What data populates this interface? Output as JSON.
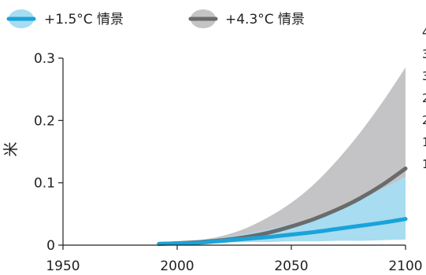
{
  "chart_data": {
    "type": "area",
    "ylabel": "米",
    "xlim": [
      1950,
      2100
    ],
    "ylim": [
      0,
      0.3
    ],
    "xticks": [
      1950,
      2000,
      2050,
      2100
    ],
    "yticks": [
      {
        "value": 0,
        "label": "0"
      },
      {
        "value": 0.1,
        "label": "0.1"
      },
      {
        "value": 0.2,
        "label": "0.2"
      },
      {
        "value": 0.3,
        "label": "0.3"
      }
    ],
    "grid": false,
    "legend_position": "top-left",
    "series": [
      {
        "name": "+1.5°C 情景",
        "color": "#1aa3d9",
        "band_color": "#a7dcf1",
        "x": [
          1992,
          2000,
          2010,
          2020,
          2030,
          2040,
          2050,
          2060,
          2070,
          2080,
          2090,
          2100
        ],
        "values": [
          0.002,
          0.003,
          0.004,
          0.007,
          0.01,
          0.013,
          0.017,
          0.021,
          0.026,
          0.031,
          0.036,
          0.042
        ],
        "lower": [
          0.002,
          0.002,
          0.003,
          0.004,
          0.005,
          0.005,
          0.006,
          0.006,
          0.007,
          0.007,
          0.008,
          0.009
        ],
        "upper": [
          0.002,
          0.004,
          0.007,
          0.012,
          0.018,
          0.025,
          0.034,
          0.045,
          0.058,
          0.073,
          0.091,
          0.11
        ]
      },
      {
        "name": "+4.3°C 情景",
        "color": "#6b6b6b",
        "band_color": "#c4c4c6",
        "x": [
          1992,
          2000,
          2010,
          2020,
          2030,
          2040,
          2050,
          2060,
          2070,
          2080,
          2090,
          2100
        ],
        "values": [
          0.002,
          0.003,
          0.005,
          0.008,
          0.013,
          0.02,
          0.03,
          0.042,
          0.057,
          0.075,
          0.097,
          0.123
        ],
        "lower": [
          0.002,
          0.002,
          0.003,
          0.004,
          0.005,
          0.006,
          0.008,
          0.01,
          0.012,
          0.014,
          0.016,
          0.018
        ],
        "upper": [
          0.002,
          0.004,
          0.008,
          0.015,
          0.027,
          0.045,
          0.068,
          0.098,
          0.136,
          0.18,
          0.23,
          0.285
        ]
      }
    ]
  },
  "right_edge_chars": [
    "4",
    "3",
    "3",
    "2",
    "2",
    "1",
    "1"
  ]
}
